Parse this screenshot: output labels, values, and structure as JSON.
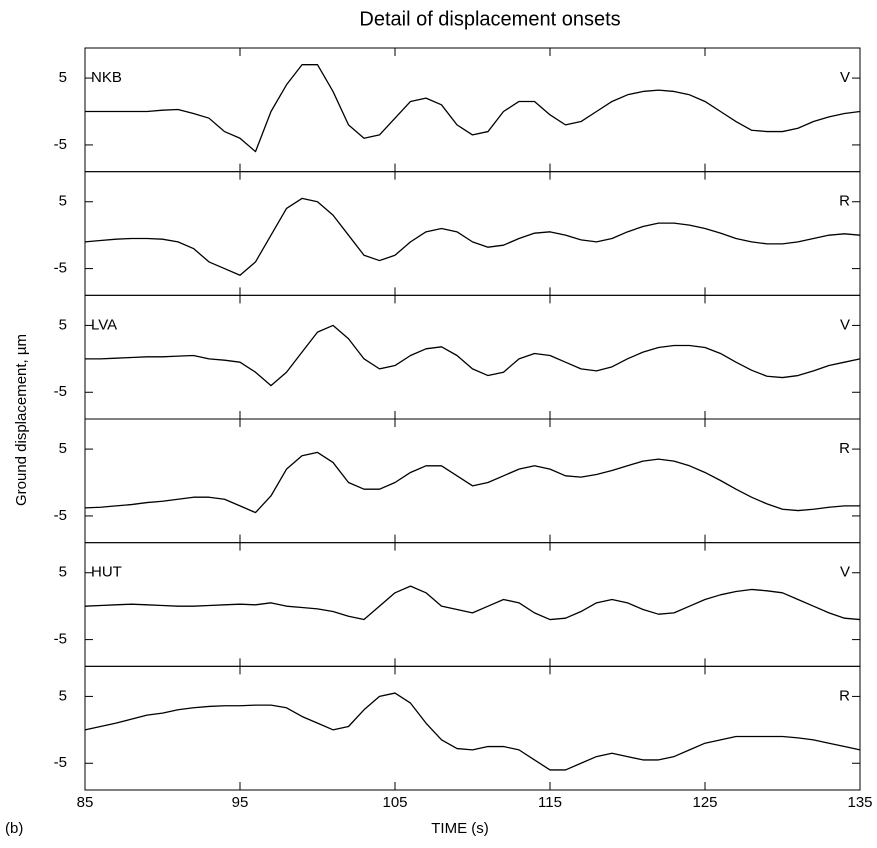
{
  "title": "Detail of displacement onsets",
  "ylabel": "Ground displacement, µm",
  "panel_label": "(b)",
  "chart_data": [
    {
      "type": "line",
      "station": "NKB",
      "component": "V",
      "color": "#000000",
      "xlim": [
        85,
        135
      ],
      "ylim": [
        -9,
        9.5
      ],
      "xticks": [
        85,
        95,
        105,
        115,
        125,
        135
      ],
      "yticks": [
        5,
        -5
      ],
      "x": [
        85,
        86,
        87,
        88,
        89,
        90,
        91,
        92,
        93,
        94,
        95,
        96,
        97,
        98,
        99,
        100,
        101,
        102,
        103,
        104,
        105,
        106,
        107,
        108,
        109,
        110,
        111,
        112,
        113,
        114,
        115,
        116,
        117,
        118,
        119,
        120,
        121,
        122,
        123,
        124,
        125,
        126,
        127,
        128,
        129,
        130,
        131,
        132,
        133,
        134,
        135
      ],
      "values": [
        0,
        0,
        0,
        0,
        0,
        0.2,
        0.3,
        -0.3,
        -1,
        -3,
        -4,
        -6,
        0,
        4,
        7,
        7,
        3,
        -2,
        -4,
        -3.5,
        -1,
        1.5,
        2,
        1,
        -2,
        -3.5,
        -3,
        0,
        1.5,
        1.5,
        -0.5,
        -2,
        -1.5,
        0,
        1.5,
        2.5,
        3,
        3.2,
        3,
        2.5,
        1.5,
        0,
        -1.5,
        -2.8,
        -3,
        -3,
        -2.5,
        -1.5,
        -0.8,
        -0.3,
        0
      ]
    },
    {
      "type": "line",
      "component": "R",
      "color": "#000000",
      "xlim": [
        85,
        135
      ],
      "ylim": [
        -9,
        9.5
      ],
      "xticks": [
        85,
        95,
        105,
        115,
        125,
        135
      ],
      "yticks": [
        5,
        -5
      ],
      "x": [
        85,
        86,
        87,
        88,
        89,
        90,
        91,
        92,
        93,
        94,
        95,
        96,
        97,
        98,
        99,
        100,
        101,
        102,
        103,
        104,
        105,
        106,
        107,
        108,
        109,
        110,
        111,
        112,
        113,
        114,
        115,
        116,
        117,
        118,
        119,
        120,
        121,
        122,
        123,
        124,
        125,
        126,
        127,
        128,
        129,
        130,
        131,
        132,
        133,
        134,
        135
      ],
      "values": [
        -1,
        -0.8,
        -0.6,
        -0.5,
        -0.5,
        -0.6,
        -1,
        -2,
        -4,
        -5,
        -6,
        -4,
        0,
        4,
        5.5,
        5,
        3,
        0,
        -3,
        -3.8,
        -3,
        -1,
        0.5,
        1,
        0.5,
        -1,
        -1.8,
        -1.5,
        -0.5,
        0.3,
        0.5,
        0,
        -0.7,
        -1,
        -0.5,
        0.5,
        1.3,
        1.8,
        1.8,
        1.5,
        1,
        0.3,
        -0.5,
        -1,
        -1.3,
        -1.3,
        -1,
        -0.5,
        0,
        0.2,
        0
      ]
    },
    {
      "type": "line",
      "station": "LVA",
      "component": "V",
      "color": "#000000",
      "xlim": [
        85,
        135
      ],
      "ylim": [
        -9,
        9.5
      ],
      "xticks": [
        85,
        95,
        105,
        115,
        125,
        135
      ],
      "yticks": [
        5,
        -5
      ],
      "x": [
        85,
        86,
        87,
        88,
        89,
        90,
        91,
        92,
        93,
        94,
        95,
        96,
        97,
        98,
        99,
        100,
        101,
        102,
        103,
        104,
        105,
        106,
        107,
        108,
        109,
        110,
        111,
        112,
        113,
        114,
        115,
        116,
        117,
        118,
        119,
        120,
        121,
        122,
        123,
        124,
        125,
        126,
        127,
        128,
        129,
        130,
        131,
        132,
        133,
        134,
        135
      ],
      "values": [
        0,
        0,
        0.1,
        0.2,
        0.3,
        0.3,
        0.4,
        0.5,
        0,
        -0.2,
        -0.5,
        -2,
        -4,
        -2,
        1,
        4,
        5,
        3,
        0,
        -1.5,
        -1,
        0.5,
        1.5,
        1.8,
        0.5,
        -1.5,
        -2.5,
        -2,
        0,
        0.8,
        0.5,
        -0.5,
        -1.5,
        -1.8,
        -1.2,
        0,
        1,
        1.7,
        2,
        2,
        1.7,
        0.8,
        -0.5,
        -1.7,
        -2.6,
        -2.8,
        -2.5,
        -1.8,
        -1,
        -0.5,
        0
      ]
    },
    {
      "type": "line",
      "component": "R",
      "color": "#000000",
      "xlim": [
        85,
        135
      ],
      "ylim": [
        -9,
        9.5
      ],
      "xticks": [
        85,
        95,
        105,
        115,
        125,
        135
      ],
      "yticks": [
        5,
        -5
      ],
      "x": [
        85,
        86,
        87,
        88,
        89,
        90,
        91,
        92,
        93,
        94,
        95,
        96,
        97,
        98,
        99,
        100,
        101,
        102,
        103,
        104,
        105,
        106,
        107,
        108,
        109,
        110,
        111,
        112,
        113,
        114,
        115,
        116,
        117,
        118,
        119,
        120,
        121,
        122,
        123,
        124,
        125,
        126,
        127,
        128,
        129,
        130,
        131,
        132,
        133,
        134,
        135
      ],
      "values": [
        -3.8,
        -3.7,
        -3.5,
        -3.3,
        -3,
        -2.8,
        -2.5,
        -2.2,
        -2.2,
        -2.5,
        -3.5,
        -4.5,
        -2,
        2,
        4,
        4.5,
        3,
        0,
        -1,
        -1,
        0,
        1.5,
        2.5,
        2.5,
        1,
        -0.5,
        0,
        1,
        2,
        2.5,
        2,
        1,
        0.8,
        1.2,
        1.8,
        2.5,
        3.2,
        3.5,
        3.2,
        2.5,
        1.5,
        0.3,
        -1,
        -2.2,
        -3.2,
        -4,
        -4.2,
        -4,
        -3.7,
        -3.5,
        -3.5
      ]
    },
    {
      "type": "line",
      "station": "HUT",
      "component": "V",
      "color": "#000000",
      "xlim": [
        85,
        135
      ],
      "ylim": [
        -9,
        9.5
      ],
      "xticks": [
        85,
        95,
        105,
        115,
        125,
        135
      ],
      "yticks": [
        5,
        -5
      ],
      "x": [
        85,
        86,
        87,
        88,
        89,
        90,
        91,
        92,
        93,
        94,
        95,
        96,
        97,
        98,
        99,
        100,
        101,
        102,
        103,
        104,
        105,
        106,
        107,
        108,
        109,
        110,
        111,
        112,
        113,
        114,
        115,
        116,
        117,
        118,
        119,
        120,
        121,
        122,
        123,
        124,
        125,
        126,
        127,
        128,
        129,
        130,
        131,
        132,
        133,
        134,
        135
      ],
      "values": [
        0,
        0.1,
        0.2,
        0.3,
        0.2,
        0.1,
        0,
        0,
        0.1,
        0.2,
        0.3,
        0.2,
        0.5,
        0,
        -0.2,
        -0.4,
        -0.8,
        -1.5,
        -2,
        0,
        2,
        3,
        2,
        0,
        -0.5,
        -1,
        0,
        1,
        0.5,
        -1,
        -2,
        -1.8,
        -0.8,
        0.5,
        1,
        0.5,
        -0.5,
        -1.2,
        -1,
        0,
        1,
        1.7,
        2.2,
        2.5,
        2.3,
        2,
        1,
        0,
        -1,
        -1.8,
        -2
      ]
    },
    {
      "type": "line",
      "component": "R",
      "color": "#000000",
      "xlabel": "TIME (s)",
      "xlim": [
        85,
        135
      ],
      "ylim": [
        -9,
        9.5
      ],
      "xticks": [
        85,
        95,
        105,
        115,
        125,
        135
      ],
      "yticks": [
        5,
        -5
      ],
      "x": [
        85,
        86,
        87,
        88,
        89,
        90,
        91,
        92,
        93,
        94,
        95,
        96,
        97,
        98,
        99,
        100,
        101,
        102,
        103,
        104,
        105,
        106,
        107,
        108,
        109,
        110,
        111,
        112,
        113,
        114,
        115,
        116,
        117,
        118,
        119,
        120,
        121,
        122,
        123,
        124,
        125,
        126,
        127,
        128,
        129,
        130,
        131,
        132,
        133,
        134,
        135
      ],
      "values": [
        0,
        0.5,
        1,
        1.6,
        2.2,
        2.5,
        3,
        3.3,
        3.5,
        3.6,
        3.6,
        3.7,
        3.7,
        3.3,
        2,
        1,
        0,
        0.5,
        3,
        5,
        5.5,
        4,
        1,
        -1.5,
        -2.8,
        -3,
        -2.5,
        -2.5,
        -3,
        -4.5,
        -6,
        -6,
        -5,
        -4,
        -3.5,
        -4,
        -4.5,
        -4.5,
        -4,
        -3,
        -2,
        -1.5,
        -1,
        -1,
        -1,
        -1,
        -1.2,
        -1.5,
        -2,
        -2.5,
        -3
      ]
    }
  ]
}
